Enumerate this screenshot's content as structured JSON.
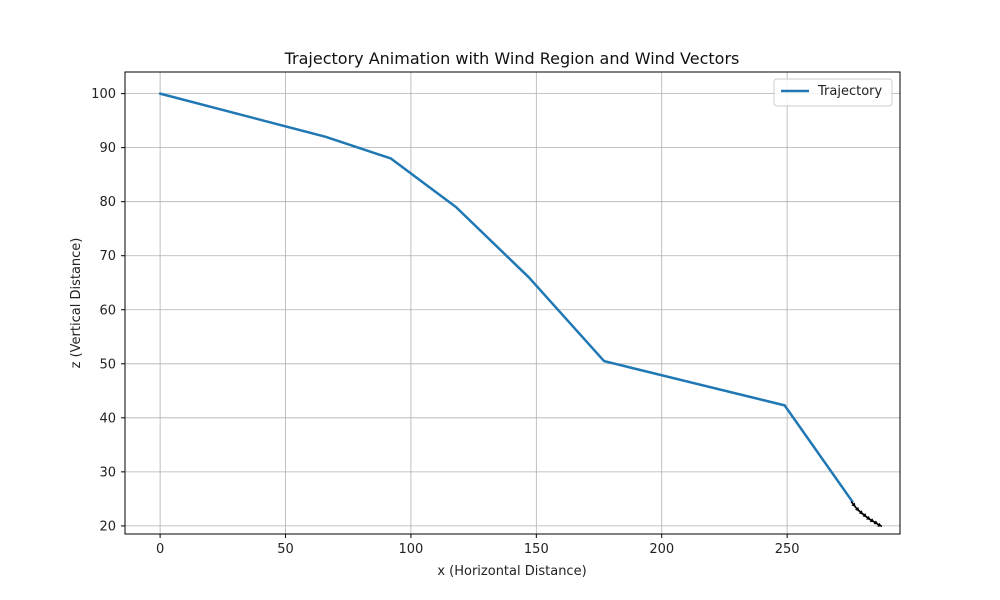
{
  "chart_data": {
    "type": "line",
    "title": "Trajectory Animation with Wind Region and Wind Vectors",
    "xlabel": "x (Horizontal Distance)",
    "ylabel": "z (Vertical Distance)",
    "xlim": [
      -14,
      295
    ],
    "ylim": [
      18.5,
      104
    ],
    "xticks": [
      0,
      50,
      100,
      150,
      200,
      250
    ],
    "yticks": [
      20,
      30,
      40,
      50,
      60,
      70,
      80,
      90,
      100
    ],
    "grid": true,
    "legend": {
      "position": "top-right",
      "entries": [
        "Trajectory"
      ]
    },
    "series": [
      {
        "name": "Trajectory",
        "color": "#1f77b4",
        "x": [
          0,
          66,
          92,
          118,
          147,
          177,
          249,
          276
        ],
        "y": [
          100,
          92,
          88,
          79,
          66,
          50.5,
          42.3,
          24.5
        ]
      }
    ],
    "wind_vectors": {
      "color": "#000000",
      "x": [
        275.5,
        277,
        278.5,
        280,
        281.5,
        283,
        284.5,
        286
      ],
      "y": [
        24.5,
        23.6,
        22.9,
        22.3,
        21.7,
        21.2,
        20.8,
        20.3
      ],
      "u": [
        1.8,
        1.8,
        1.8,
        1.8,
        1.8,
        1.8,
        1.8,
        1.8
      ],
      "v": [
        -1.0,
        -0.9,
        -0.8,
        -0.7,
        -0.6,
        -0.5,
        -0.5,
        -0.4
      ]
    }
  }
}
